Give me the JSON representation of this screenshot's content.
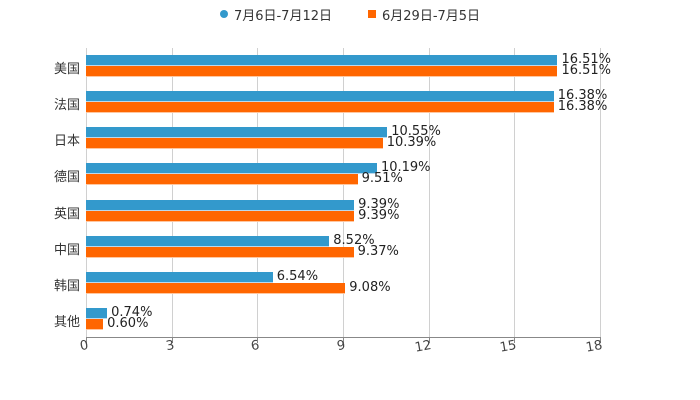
{
  "legend": [
    {
      "label": "7月6日-7月12日",
      "color": "#3399cc",
      "marker": "circle"
    },
    {
      "label": "6月29日-7月5日",
      "color": "#ff6600",
      "marker": "square"
    }
  ],
  "chart_data": {
    "type": "bar",
    "orientation": "horizontal",
    "title": "",
    "xlabel": "",
    "ylabel": "",
    "xlim": [
      0,
      18
    ],
    "xticks": [
      0,
      3,
      6,
      9,
      12,
      15,
      18
    ],
    "grid": true,
    "legend_position": "top",
    "categories": [
      "美国",
      "法国",
      "日本",
      "德国",
      "英国",
      "中国",
      "韩国",
      "其他"
    ],
    "series": [
      {
        "name": "7月6日-7月12日",
        "color": "#3399cc",
        "values": [
          16.51,
          16.38,
          10.55,
          10.19,
          9.39,
          8.52,
          6.54,
          0.74
        ],
        "labels": [
          "16.51%",
          "16.38%",
          "10.55%",
          "10.19%",
          "9.39%",
          "8.52%",
          "6.54%",
          "0.74%"
        ]
      },
      {
        "name": "6月29日-7月5日",
        "color": "#ff6600",
        "values": [
          16.51,
          16.38,
          10.39,
          9.51,
          9.39,
          9.37,
          9.08,
          0.6
        ],
        "labels": [
          "16.51%",
          "16.38%",
          "10.39%",
          "9.51%",
          "9.39%",
          "9.37%",
          "9.08%",
          "0.60%"
        ]
      }
    ]
  }
}
